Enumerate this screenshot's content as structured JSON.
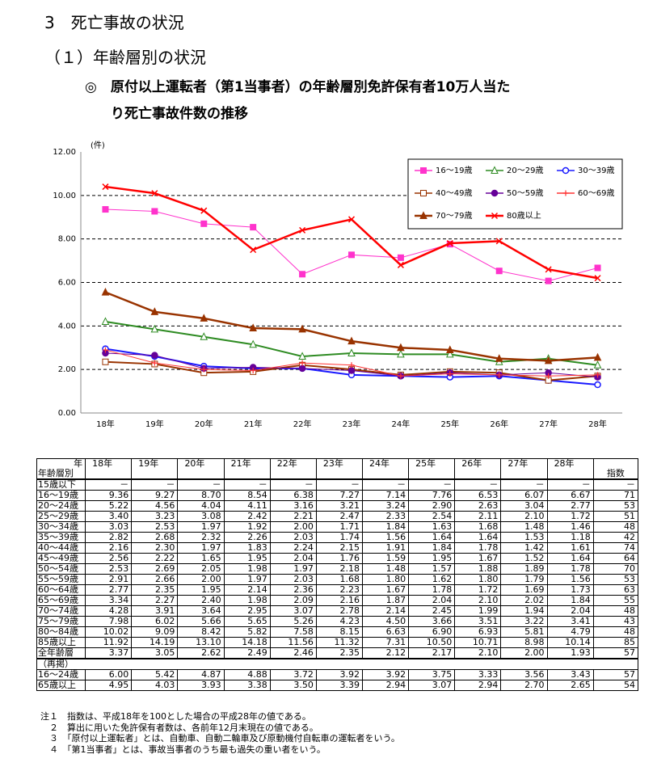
{
  "header": {
    "section": "3　死亡事故の状況",
    "subsection": "（１）年齢層別の状況",
    "title_lines": [
      "◎　原付以上運転者（第1当事者）の年齢層別免許保有者10万人当た",
      "り死亡事故件数の推移"
    ]
  },
  "chart_data": {
    "type": "line",
    "y_unit": "(件)",
    "categories": [
      "18年",
      "19年",
      "20年",
      "21年",
      "22年",
      "23年",
      "24年",
      "25年",
      "26年",
      "27年",
      "28年"
    ],
    "ylim": [
      0,
      12
    ],
    "yticks": [
      {
        "value": 0,
        "label": "0.00"
      },
      {
        "value": 2,
        "label": "2.00"
      },
      {
        "value": 4,
        "label": "4.00"
      },
      {
        "value": 6,
        "label": "6.00"
      },
      {
        "value": 8,
        "label": "8.00"
      },
      {
        "value": 10,
        "label": "10.00"
      },
      {
        "value": 12,
        "label": "12.00"
      }
    ],
    "grid": true,
    "legend": "upper right",
    "series": [
      {
        "name": "16～19歳",
        "color": "#ff33cc",
        "marker": "square-filled",
        "values": [
          9.36,
          9.27,
          8.7,
          8.54,
          6.38,
          7.27,
          7.14,
          7.76,
          6.53,
          6.07,
          6.67
        ]
      },
      {
        "name": "20～29歳",
        "color": "#2e8b22",
        "marker": "triangle-open",
        "values": [
          4.2,
          3.85,
          3.5,
          3.15,
          2.6,
          2.75,
          2.7,
          2.7,
          2.35,
          2.5,
          2.2
        ]
      },
      {
        "name": "30～39歳",
        "color": "#1a1aff",
        "marker": "circle-open",
        "values": [
          2.95,
          2.6,
          2.15,
          2.05,
          2.05,
          1.75,
          1.7,
          1.65,
          1.7,
          1.5,
          1.3
        ]
      },
      {
        "name": "40～49歳",
        "color": "#993300",
        "marker": "square-open",
        "values": [
          2.35,
          2.25,
          1.85,
          1.9,
          2.2,
          2.0,
          1.75,
          1.9,
          1.85,
          1.5,
          1.7
        ]
      },
      {
        "name": "50～59歳",
        "color": "#660099",
        "marker": "circle-filled",
        "values": [
          2.75,
          2.65,
          2.05,
          2.1,
          2.05,
          1.95,
          1.7,
          1.85,
          1.75,
          1.85,
          1.65
        ]
      },
      {
        "name": "60～69歳",
        "color": "#ff3333",
        "marker": "plus",
        "values": [
          2.9,
          2.3,
          2.0,
          1.95,
          2.3,
          2.2,
          1.7,
          1.8,
          1.75,
          1.7,
          1.75
        ]
      },
      {
        "name": "70～79歳",
        "color": "#993300",
        "marker": "triangle-filled",
        "values": [
          5.55,
          4.65,
          4.35,
          3.9,
          3.85,
          3.3,
          3.0,
          2.9,
          2.5,
          2.4,
          2.55
        ]
      },
      {
        "name": "80歳以上",
        "color": "#ff0000",
        "marker": "cross",
        "values": [
          10.4,
          10.1,
          9.3,
          7.5,
          8.4,
          8.9,
          6.8,
          7.8,
          7.9,
          6.6,
          6.2
        ]
      }
    ]
  },
  "table": {
    "corner_top": "年",
    "corner_bottom": "年齢層別",
    "columns": [
      "18年",
      "19年",
      "20年",
      "21年",
      "22年",
      "23年",
      "24年",
      "25年",
      "26年",
      "27年",
      "28年"
    ],
    "index_header": "指数",
    "rows": [
      {
        "label": "15歳以下",
        "values": [
          "－",
          "－",
          "－",
          "－",
          "－",
          "－",
          "－",
          "－",
          "－",
          "－",
          "－"
        ],
        "index": "－"
      },
      {
        "label": "16～19歳",
        "values": [
          "9.36",
          "9.27",
          "8.70",
          "8.54",
          "6.38",
          "7.27",
          "7.14",
          "7.76",
          "6.53",
          "6.07",
          "6.67"
        ],
        "index": "71"
      },
      {
        "label": "20～24歳",
        "values": [
          "5.22",
          "4.56",
          "4.04",
          "4.11",
          "3.16",
          "3.21",
          "3.24",
          "2.90",
          "2.63",
          "3.04",
          "2.77"
        ],
        "index": "53"
      },
      {
        "label": "25～29歳",
        "values": [
          "3.40",
          "3.23",
          "3.08",
          "2.42",
          "2.21",
          "2.47",
          "2.33",
          "2.54",
          "2.11",
          "2.10",
          "1.72"
        ],
        "index": "51"
      },
      {
        "label": "30～34歳",
        "values": [
          "3.03",
          "2.53",
          "1.97",
          "1.92",
          "2.00",
          "1.71",
          "1.84",
          "1.63",
          "1.68",
          "1.48",
          "1.46"
        ],
        "index": "48"
      },
      {
        "label": "35～39歳",
        "values": [
          "2.82",
          "2.68",
          "2.32",
          "2.26",
          "2.03",
          "1.74",
          "1.56",
          "1.64",
          "1.64",
          "1.53",
          "1.18"
        ],
        "index": "42"
      },
      {
        "label": "40～44歳",
        "values": [
          "2.16",
          "2.30",
          "1.97",
          "1.83",
          "2.24",
          "2.15",
          "1.91",
          "1.84",
          "1.78",
          "1.42",
          "1.61"
        ],
        "index": "74"
      },
      {
        "label": "45～49歳",
        "values": [
          "2.56",
          "2.22",
          "1.65",
          "1.95",
          "2.04",
          "1.76",
          "1.59",
          "1.95",
          "1.67",
          "1.52",
          "1.64"
        ],
        "index": "64"
      },
      {
        "label": "50～54歳",
        "values": [
          "2.53",
          "2.69",
          "2.05",
          "1.98",
          "1.97",
          "2.18",
          "1.48",
          "1.57",
          "1.88",
          "1.89",
          "1.78"
        ],
        "index": "70"
      },
      {
        "label": "55～59歳",
        "values": [
          "2.91",
          "2.66",
          "2.00",
          "1.97",
          "2.03",
          "1.68",
          "1.80",
          "1.62",
          "1.80",
          "1.79",
          "1.56"
        ],
        "index": "53"
      },
      {
        "label": "60～64歳",
        "values": [
          "2.77",
          "2.35",
          "1.95",
          "2.14",
          "2.36",
          "2.23",
          "1.67",
          "1.78",
          "1.72",
          "1.69",
          "1.73"
        ],
        "index": "63"
      },
      {
        "label": "65～69歳",
        "values": [
          "3.34",
          "2.27",
          "2.40",
          "1.98",
          "2.09",
          "2.16",
          "1.87",
          "2.04",
          "2.10",
          "2.02",
          "1.84"
        ],
        "index": "55"
      },
      {
        "label": "70～74歳",
        "values": [
          "4.28",
          "3.91",
          "3.64",
          "2.95",
          "3.07",
          "2.78",
          "2.14",
          "2.45",
          "1.99",
          "1.94",
          "2.04"
        ],
        "index": "48"
      },
      {
        "label": "75～79歳",
        "values": [
          "7.98",
          "6.02",
          "5.66",
          "5.65",
          "5.26",
          "4.23",
          "4.50",
          "3.66",
          "3.51",
          "3.22",
          "3.41"
        ],
        "index": "43"
      },
      {
        "label": "80～84歳",
        "values": [
          "10.02",
          "9.09",
          "8.42",
          "5.82",
          "7.58",
          "8.15",
          "6.63",
          "6.90",
          "6.93",
          "5.81",
          "4.79"
        ],
        "index": "48"
      },
      {
        "label": "85歳以上",
        "values": [
          "11.92",
          "14.19",
          "13.10",
          "14.18",
          "11.56",
          "11.32",
          "7.31",
          "10.50",
          "10.71",
          "8.98",
          "10.14"
        ],
        "index": "85"
      },
      {
        "label": "全年齢層",
        "values": [
          "3.37",
          "3.05",
          "2.62",
          "2.49",
          "2.46",
          "2.35",
          "2.12",
          "2.17",
          "2.10",
          "2.00",
          "1.93"
        ],
        "index": "57"
      }
    ],
    "reprint_label": "（再掲）",
    "reprint_rows": [
      {
        "label": "16～24歳",
        "values": [
          "6.00",
          "5.42",
          "4.87",
          "4.88",
          "3.72",
          "3.92",
          "3.92",
          "3.75",
          "3.33",
          "3.56",
          "3.43"
        ],
        "index": "57"
      },
      {
        "label": "65歳以上",
        "values": [
          "4.95",
          "4.03",
          "3.93",
          "3.38",
          "3.50",
          "3.39",
          "2.94",
          "3.07",
          "2.94",
          "2.70",
          "2.65"
        ],
        "index": "54"
      }
    ]
  },
  "notes": [
    "注１　指数は、平成18年を100とした場合の平成28年の値である。",
    "　２　算出に用いた免許保有者数は、各前年12月末現在の値である。",
    "　３　「原付以上運転者」とは、自動車、自動二輪車及び原動機付自転車の運転者をいう。",
    "　４　「第1当事者」とは、事故当事者のうち最も過失の重い者をいう。"
  ]
}
